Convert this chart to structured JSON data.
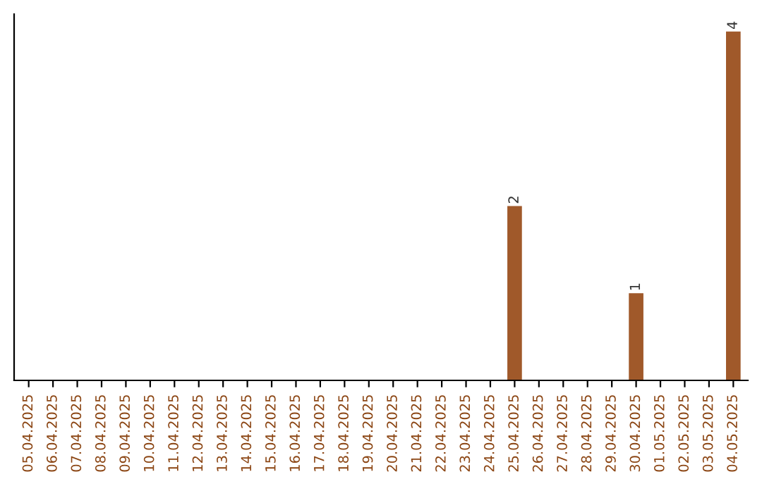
{
  "chart_data": {
    "type": "bar",
    "categories": [
      "05.04.2025",
      "06.04.2025",
      "07.04.2025",
      "08.04.2025",
      "09.04.2025",
      "10.04.2025",
      "11.04.2025",
      "12.04.2025",
      "13.04.2025",
      "14.04.2025",
      "15.04.2025",
      "16.04.2025",
      "17.04.2025",
      "18.04.2025",
      "19.04.2025",
      "20.04.2025",
      "21.04.2025",
      "22.04.2025",
      "23.04.2025",
      "24.04.2025",
      "25.04.2025",
      "26.04.2025",
      "27.04.2025",
      "28.04.2025",
      "29.04.2025",
      "30.04.2025",
      "01.05.2025",
      "02.05.2025",
      "03.05.2025",
      "04.05.2025"
    ],
    "values": [
      null,
      null,
      null,
      null,
      null,
      null,
      null,
      null,
      null,
      null,
      null,
      null,
      null,
      null,
      null,
      null,
      null,
      null,
      null,
      null,
      2,
      null,
      null,
      null,
      null,
      1,
      null,
      null,
      null,
      4
    ],
    "value_labels": [
      null,
      null,
      null,
      null,
      null,
      null,
      null,
      null,
      null,
      null,
      null,
      null,
      null,
      null,
      null,
      null,
      null,
      null,
      null,
      null,
      "2",
      null,
      null,
      null,
      null,
      "1",
      null,
      null,
      null,
      "4"
    ],
    "color": "#a0592a",
    "grid": false,
    "legend": false
  }
}
